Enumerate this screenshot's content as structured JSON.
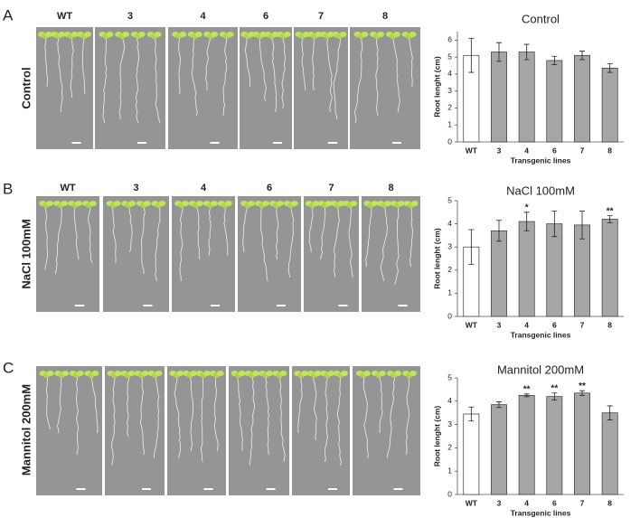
{
  "panels": [
    {
      "label": "A",
      "condition": "Control",
      "lines": [
        "WT",
        "3",
        "4",
        "6",
        "7",
        "8"
      ]
    },
    {
      "label": "B",
      "condition": "NaCl 100mM",
      "lines": [
        "WT",
        "3",
        "4",
        "6",
        "7",
        "8"
      ]
    },
    {
      "label": "C",
      "condition": "Mannitol 200mM",
      "lines": [
        "WT",
        "3",
        "4",
        "6",
        "7",
        "8"
      ]
    }
  ],
  "chart_data": [
    {
      "type": "bar",
      "title": "Control",
      "x_label": "Transgenic lines",
      "y_label": "Root lenght (cm)",
      "categories": [
        "WT",
        "3",
        "4",
        "6",
        "7",
        "8"
      ],
      "values": [
        5.1,
        5.3,
        5.3,
        4.8,
        5.1,
        4.35
      ],
      "errors": [
        1.0,
        0.55,
        0.45,
        0.25,
        0.25,
        0.25
      ],
      "significance": [
        null,
        null,
        null,
        null,
        null,
        null
      ],
      "colors": [
        "#ffffff",
        "#a6a6a6",
        "#a6a6a6",
        "#a6a6a6",
        "#a6a6a6",
        "#a6a6a6"
      ],
      "ylim": [
        0,
        6.5
      ],
      "yticks": [
        0,
        1,
        2,
        3,
        4,
        5,
        6
      ],
      "grid": false
    },
    {
      "type": "bar",
      "title": "NaCl 100mM",
      "x_label": "Transgenic lines",
      "y_label": "Root lenght (cm)",
      "categories": [
        "WT",
        "3",
        "4",
        "6",
        "7",
        "8"
      ],
      "values": [
        3.0,
        3.7,
        4.1,
        4.0,
        3.95,
        4.2
      ],
      "errors": [
        0.75,
        0.45,
        0.4,
        0.55,
        0.6,
        0.15
      ],
      "significance": [
        null,
        null,
        "*",
        null,
        null,
        "**"
      ],
      "colors": [
        "#ffffff",
        "#a6a6a6",
        "#a6a6a6",
        "#a6a6a6",
        "#a6a6a6",
        "#a6a6a6"
      ],
      "ylim": [
        0,
        5
      ],
      "yticks": [
        0,
        1,
        2,
        3,
        4,
        5
      ],
      "grid": false
    },
    {
      "type": "bar",
      "title": "Mannitol 200mM",
      "x_label": "Transgenic lines",
      "y_label": "Root lenght (cm)",
      "categories": [
        "WT",
        "3",
        "4",
        "6",
        "7",
        "8"
      ],
      "values": [
        3.45,
        3.85,
        4.25,
        4.2,
        4.35,
        3.5
      ],
      "errors": [
        0.3,
        0.12,
        0.06,
        0.15,
        0.1,
        0.3
      ],
      "significance": [
        null,
        null,
        "**",
        "**",
        "**",
        null
      ],
      "colors": [
        "#ffffff",
        "#a6a6a6",
        "#a6a6a6",
        "#a6a6a6",
        "#a6a6a6",
        "#a6a6a6"
      ],
      "ylim": [
        0,
        5
      ],
      "yticks": [
        0,
        1,
        2,
        3,
        4,
        5
      ],
      "grid": false
    }
  ]
}
